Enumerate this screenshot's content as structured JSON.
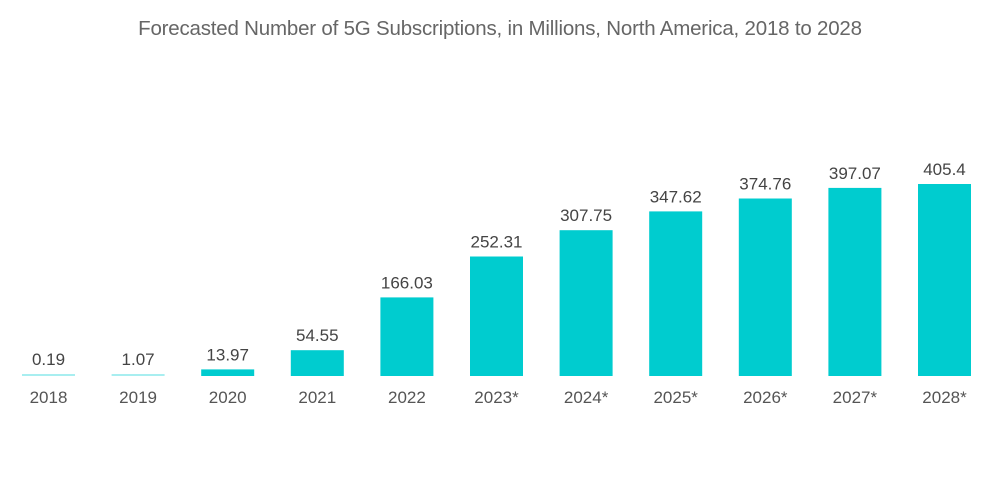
{
  "chart_data": {
    "type": "bar",
    "title": "Forecasted Number of 5G Subscriptions, in Millions, North America, 2018 to 2028",
    "xlabel": "",
    "ylabel": "",
    "categories": [
      "2018",
      "2019",
      "2020",
      "2021",
      "2022",
      "2023*",
      "2024*",
      "2025*",
      "2026*",
      "2027*",
      "2028*"
    ],
    "values": [
      0.19,
      1.07,
      13.97,
      54.55,
      166.03,
      252.31,
      307.75,
      347.62,
      374.76,
      397.07,
      405.4
    ],
    "value_labels": [
      "0.19",
      "1.07",
      "13.97",
      "54.55",
      "166.03",
      "252.31",
      "307.75",
      "347.62",
      "374.76",
      "397.07",
      "405.4"
    ],
    "ylim": [
      0,
      405.4
    ],
    "grid": false,
    "legend": "none",
    "bar_color": "#00CCCF",
    "small_bar_color": "#A8EEF0"
  }
}
